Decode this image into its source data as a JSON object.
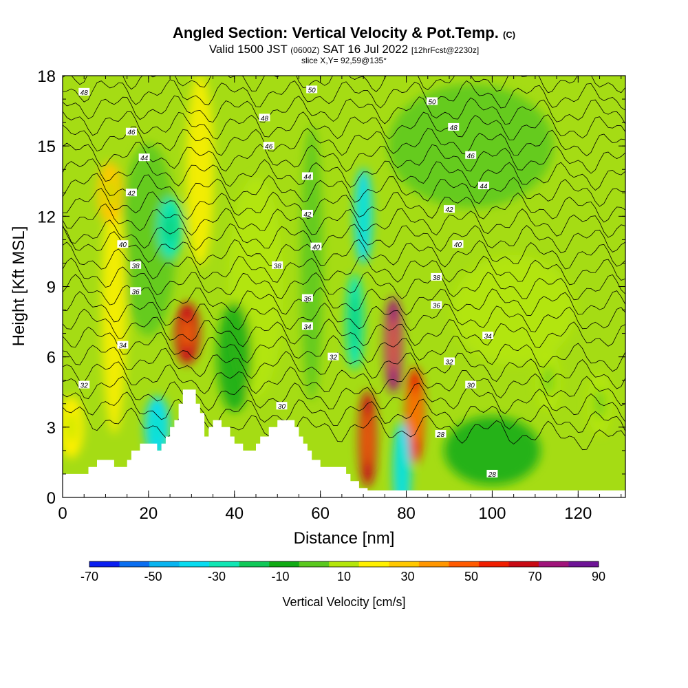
{
  "header": {
    "title": "Angled Section: Vertical Velocity & Pot.Temp.",
    "title_suffix": "(C)",
    "valid_prefix": "Valid 1500 JST",
    "valid_zulu": "(0600Z)",
    "valid_date": "SAT 16 Jul 2022",
    "forecast": "[12hrFcst@2230z]",
    "slice": "slice X,Y= 92,59@135°"
  },
  "colorbar": {
    "label": "Vertical Velocity [cm/s]",
    "tick_labels": [
      "-70",
      "-50",
      "-30",
      "-10",
      "10",
      "30",
      "50",
      "70",
      "90"
    ],
    "levels": [
      -70,
      -60,
      -50,
      -40,
      -30,
      -20,
      -10,
      0,
      10,
      20,
      30,
      40,
      50,
      60,
      70,
      80,
      90
    ],
    "colors": [
      "#0a1ef0",
      "#0a6ef0",
      "#08b4f0",
      "#08dcf0",
      "#10e6b4",
      "#10c858",
      "#10aa14",
      "#5ac81e",
      "#b4e60a",
      "#fff000",
      "#ffc800",
      "#ff9600",
      "#ff5a00",
      "#f01e00",
      "#c80a14",
      "#a0147a",
      "#6e1496"
    ]
  },
  "chart_data": {
    "type": "contour",
    "title": "Angled Section: Vertical Velocity & Pot.Temp.",
    "xlabel": "Distance [nm]",
    "ylabel": "Height [Kft MSL]",
    "xlim": [
      0,
      131
    ],
    "ylim": [
      0,
      18
    ],
    "x_ticks": [
      0,
      20,
      40,
      60,
      80,
      100,
      120
    ],
    "y_ticks": [
      0,
      3,
      6,
      9,
      12,
      15,
      18
    ],
    "fill_variable": "Vertical Velocity [cm/s]",
    "contour_variable": "Pot.Temp. (C)",
    "velocity_features": [
      {
        "x": 2,
        "y": 3,
        "w": 20,
        "sign": "up"
      },
      {
        "x": 11,
        "y": 13,
        "w": 30,
        "sign": "up"
      },
      {
        "x": 29,
        "y": 7,
        "w": 70,
        "sign": "up"
      },
      {
        "x": 71,
        "y": 2.5,
        "w": 70,
        "sign": "up"
      },
      {
        "x": 77,
        "y": 6.5,
        "w": 80,
        "sign": "up"
      },
      {
        "x": 82,
        "y": 3.5,
        "w": 65,
        "sign": "up"
      },
      {
        "x": 79,
        "y": 1.2,
        "w": -40,
        "sign": "down"
      },
      {
        "x": 22,
        "y": 3,
        "w": -35,
        "sign": "down"
      },
      {
        "x": 70,
        "y": 12,
        "w": -40,
        "sign": "down"
      },
      {
        "x": 68,
        "y": 7.5,
        "w": -30,
        "sign": "down"
      },
      {
        "x": 25,
        "y": 11.5,
        "w": -30,
        "sign": "down"
      },
      {
        "x": 113,
        "y": 5,
        "w": 15,
        "sign": "up"
      },
      {
        "x": 125,
        "y": 4,
        "w": 15,
        "sign": "up"
      }
    ],
    "contour_labels": [
      {
        "text": "48",
        "x": 5,
        "y": 17.3
      },
      {
        "text": "50",
        "x": 58,
        "y": 17.4
      },
      {
        "text": "50",
        "x": 86,
        "y": 16.9
      },
      {
        "text": "48",
        "x": 47,
        "y": 16.2
      },
      {
        "text": "48",
        "x": 91,
        "y": 15.8
      },
      {
        "text": "46",
        "x": 16,
        "y": 15.6
      },
      {
        "text": "46",
        "x": 48,
        "y": 15
      },
      {
        "text": "46",
        "x": 95,
        "y": 14.6
      },
      {
        "text": "44",
        "x": 19,
        "y": 14.5
      },
      {
        "text": "44",
        "x": 57,
        "y": 13.7
      },
      {
        "text": "44",
        "x": 98,
        "y": 13.3
      },
      {
        "text": "42",
        "x": 16,
        "y": 13
      },
      {
        "text": "42",
        "x": 57,
        "y": 12.1
      },
      {
        "text": "42",
        "x": 90,
        "y": 12.3
      },
      {
        "text": "40",
        "x": 14,
        "y": 10.8
      },
      {
        "text": "40",
        "x": 59,
        "y": 10.7
      },
      {
        "text": "40",
        "x": 92,
        "y": 10.8
      },
      {
        "text": "38",
        "x": 17,
        "y": 9.9
      },
      {
        "text": "38",
        "x": 50,
        "y": 9.9
      },
      {
        "text": "38",
        "x": 87,
        "y": 9.4
      },
      {
        "text": "36",
        "x": 17,
        "y": 8.8
      },
      {
        "text": "36",
        "x": 57,
        "y": 8.5
      },
      {
        "text": "36",
        "x": 87,
        "y": 8.2
      },
      {
        "text": "34",
        "x": 57,
        "y": 7.3
      },
      {
        "text": "34",
        "x": 14,
        "y": 6.5
      },
      {
        "text": "34",
        "x": 99,
        "y": 6.9
      },
      {
        "text": "32",
        "x": 63,
        "y": 6
      },
      {
        "text": "32",
        "x": 90,
        "y": 5.8
      },
      {
        "text": "32",
        "x": 5,
        "y": 4.8
      },
      {
        "text": "30",
        "x": 95,
        "y": 4.8
      },
      {
        "text": "30",
        "x": 51,
        "y": 3.9
      },
      {
        "text": "28",
        "x": 88,
        "y": 2.7
      },
      {
        "text": "28",
        "x": 100,
        "y": 1
      }
    ],
    "terrain_kft": [
      [
        0,
        0
      ],
      [
        0,
        1
      ],
      [
        6,
        1
      ],
      [
        6,
        1.3
      ],
      [
        8,
        1.3
      ],
      [
        8,
        1.6
      ],
      [
        12,
        1.6
      ],
      [
        12,
        1.3
      ],
      [
        15,
        1.3
      ],
      [
        15,
        1.6
      ],
      [
        16,
        1.6
      ],
      [
        16,
        2
      ],
      [
        18,
        2
      ],
      [
        18,
        2.3
      ],
      [
        22,
        2.3
      ],
      [
        22,
        2
      ],
      [
        23,
        2
      ],
      [
        23,
        2.3
      ],
      [
        24,
        2.3
      ],
      [
        24,
        2.6
      ],
      [
        25,
        2.6
      ],
      [
        25,
        3
      ],
      [
        26,
        3
      ],
      [
        26,
        3.3
      ],
      [
        27,
        3.3
      ],
      [
        27,
        4
      ],
      [
        28,
        4
      ],
      [
        28,
        4.6
      ],
      [
        31,
        4.6
      ],
      [
        31,
        4
      ],
      [
        32,
        4
      ],
      [
        32,
        3.6
      ],
      [
        33,
        3.6
      ],
      [
        33,
        2.6
      ],
      [
        34,
        2.6
      ],
      [
        34,
        3
      ],
      [
        35,
        3
      ],
      [
        35,
        3.3
      ],
      [
        37,
        3.3
      ],
      [
        37,
        3
      ],
      [
        39,
        3
      ],
      [
        39,
        2.6
      ],
      [
        40,
        2.6
      ],
      [
        40,
        2.3
      ],
      [
        42,
        2.3
      ],
      [
        42,
        2
      ],
      [
        45,
        2
      ],
      [
        45,
        2.3
      ],
      [
        46,
        2.3
      ],
      [
        46,
        2.6
      ],
      [
        48,
        2.6
      ],
      [
        48,
        3
      ],
      [
        50,
        3
      ],
      [
        50,
        3.3
      ],
      [
        54,
        3.3
      ],
      [
        54,
        3
      ],
      [
        55,
        3
      ],
      [
        55,
        2.6
      ],
      [
        56,
        2.6
      ],
      [
        56,
        2.3
      ],
      [
        57,
        2.3
      ],
      [
        57,
        2
      ],
      [
        58,
        2
      ],
      [
        58,
        1.6
      ],
      [
        60,
        1.6
      ],
      [
        60,
        1.3
      ],
      [
        66,
        1.3
      ],
      [
        66,
        1
      ],
      [
        67,
        1
      ],
      [
        67,
        0.7
      ],
      [
        69,
        0.7
      ],
      [
        69,
        0.4
      ],
      [
        71,
        0.4
      ],
      [
        71,
        0.3
      ],
      [
        131,
        0.3
      ],
      [
        131,
        0
      ]
    ]
  }
}
